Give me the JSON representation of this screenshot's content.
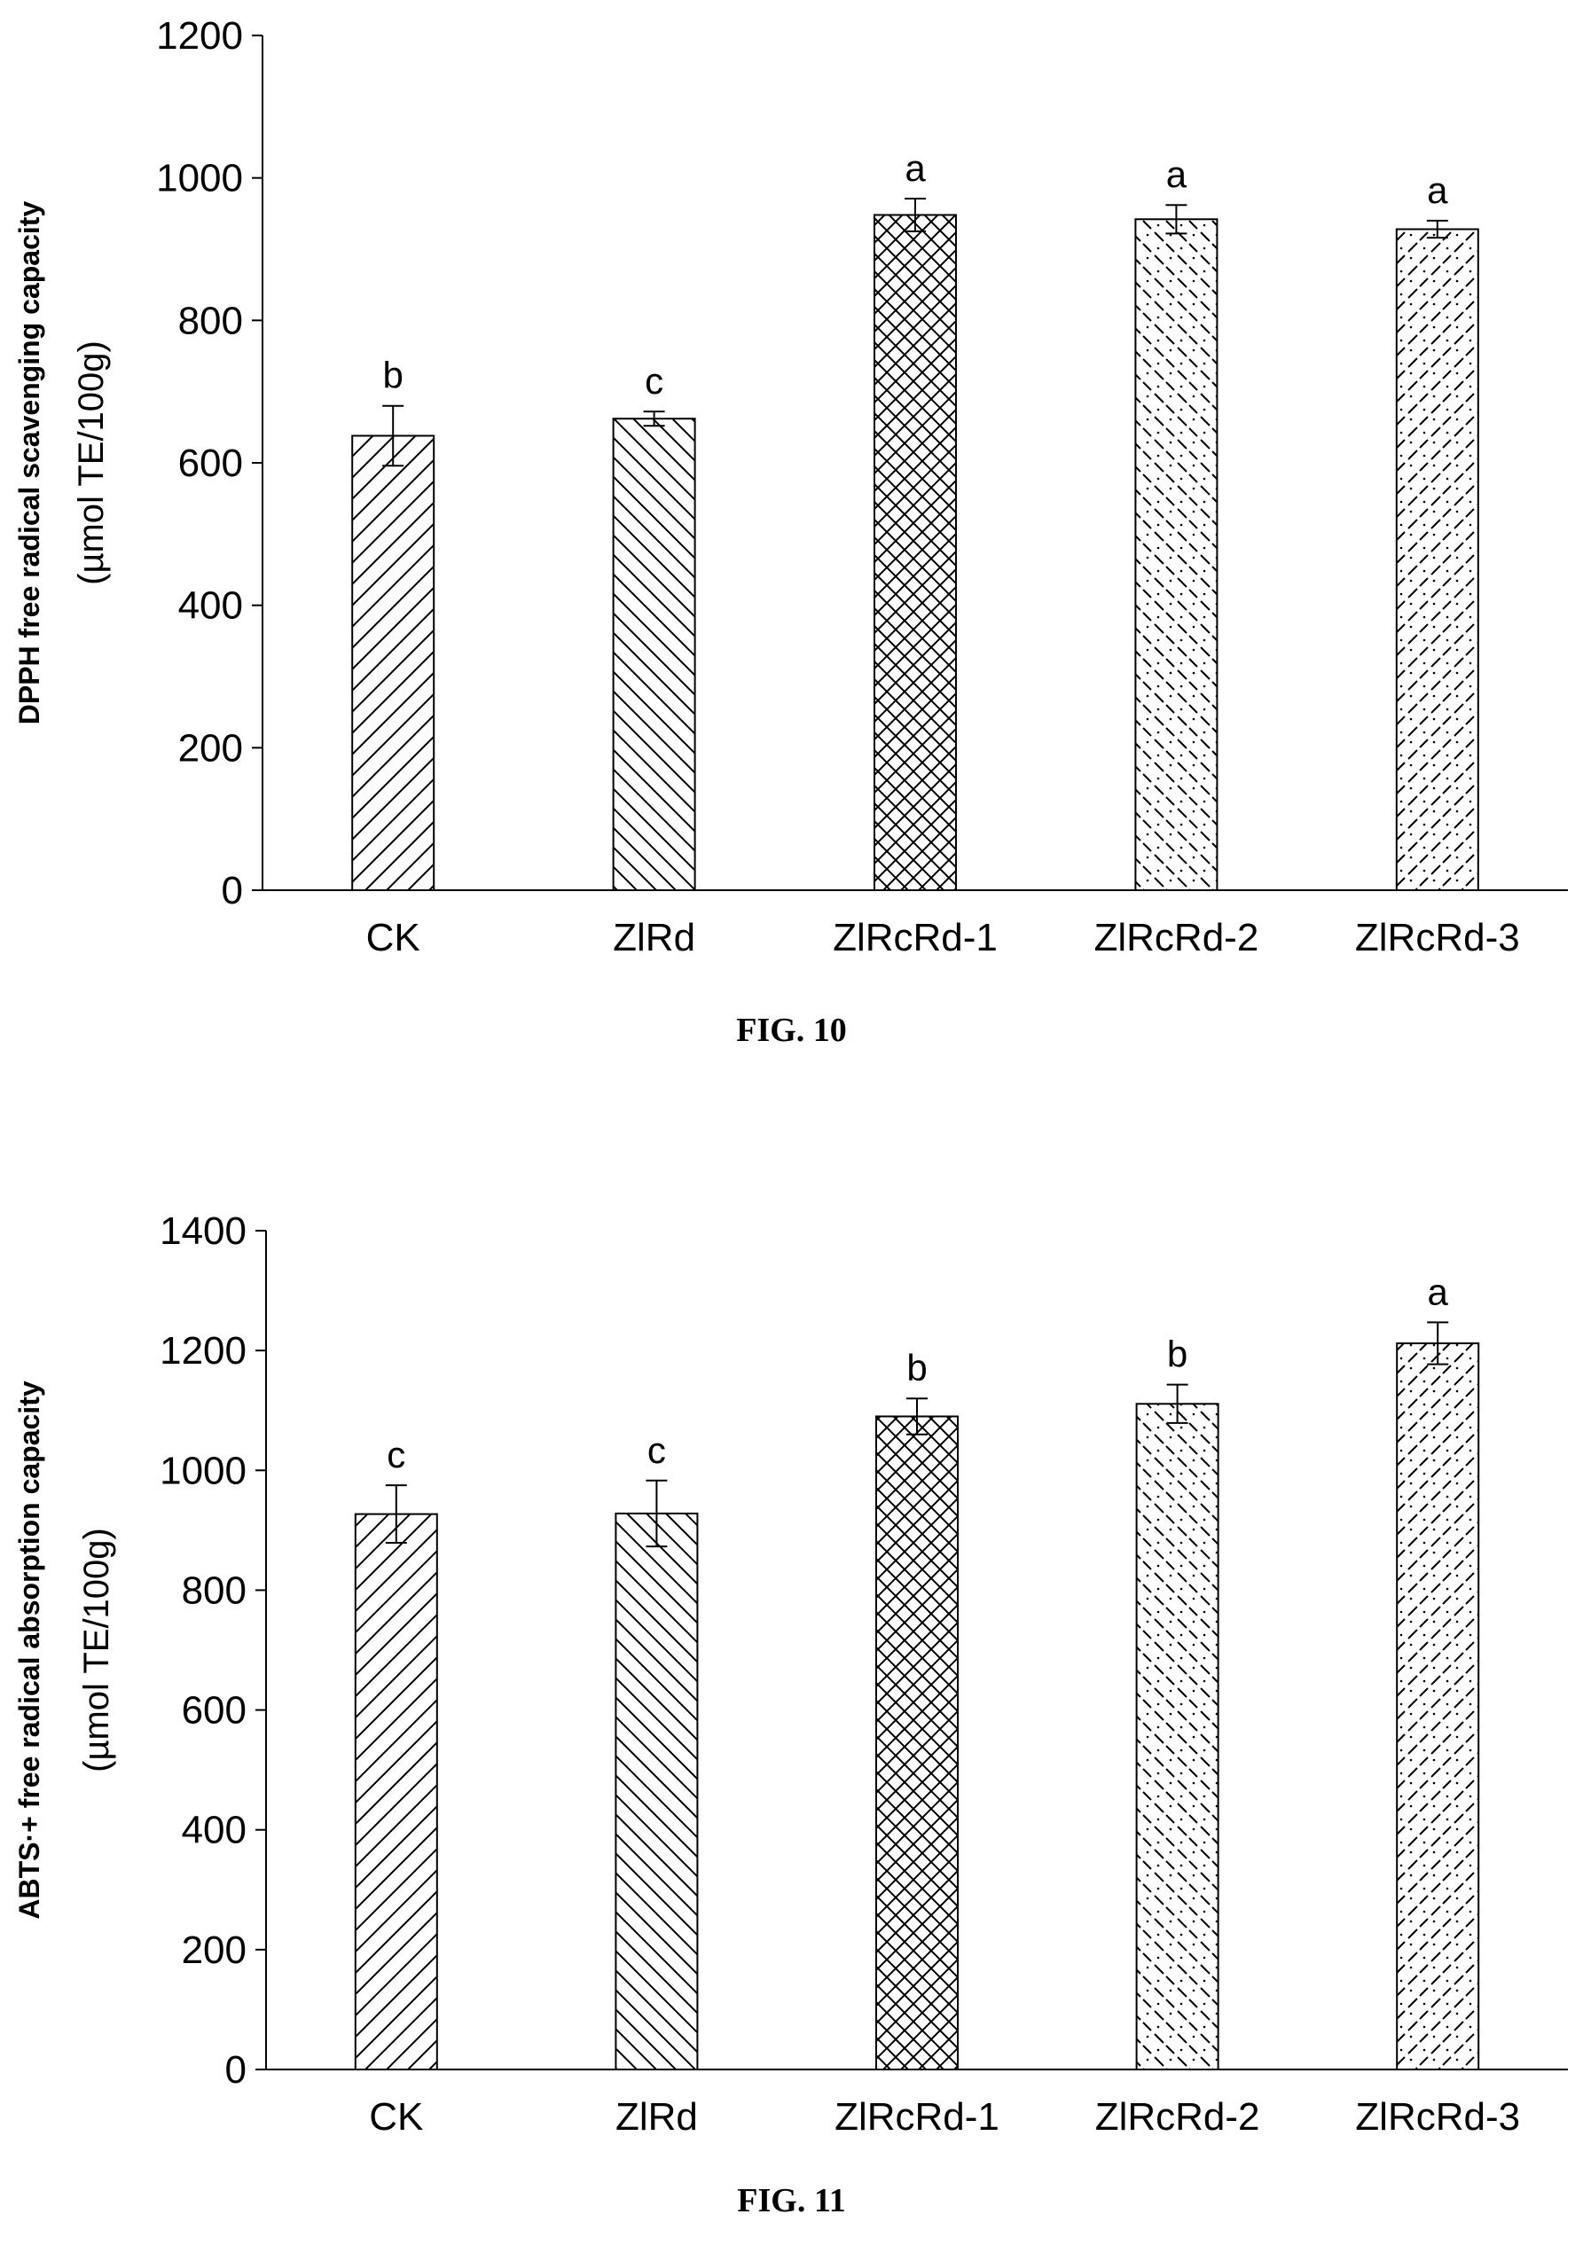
{
  "figures": [
    {
      "caption": "FIG. 10",
      "chart_data": {
        "type": "bar",
        "categories": [
          "CK",
          "ZlRd",
          "ZlRcRd-1",
          "ZlRcRd-2",
          "ZlRcRd-3"
        ],
        "values": [
          638,
          662,
          948,
          942,
          928
        ],
        "errors": [
          42,
          10,
          23,
          20,
          12
        ],
        "significance": [
          "b",
          "c",
          "a",
          "a",
          "a"
        ],
        "patterns": [
          "diag-right",
          "diag-left",
          "crosshatch",
          "dotted-left",
          "dashed-right"
        ],
        "ylabel": [
          "DPPH free radical scavenging capacity",
          "(µmol TE/100g)"
        ],
        "ylim": [
          0,
          1200
        ],
        "yticks": [
          0,
          200,
          400,
          600,
          800,
          1000,
          1200
        ],
        "grid": false,
        "legend": "none"
      }
    },
    {
      "caption": "FIG. 11",
      "chart_data": {
        "type": "bar",
        "categories": [
          "CK",
          "ZlRd",
          "ZlRcRd-1",
          "ZlRcRd-2",
          "ZlRcRd-3"
        ],
        "values": [
          927,
          928,
          1090,
          1111,
          1212
        ],
        "errors": [
          48,
          55,
          30,
          32,
          35
        ],
        "significance": [
          "c",
          "c",
          "b",
          "b",
          "a"
        ],
        "patterns": [
          "diag-right",
          "diag-left",
          "crosshatch",
          "dotted-left",
          "dashed-right"
        ],
        "ylabel": [
          "ABTS·+ free radical absorption capacity",
          "(µmol TE/100g)"
        ],
        "ylim": [
          0,
          1400
        ],
        "yticks": [
          0,
          200,
          400,
          600,
          800,
          1000,
          1200,
          1400
        ],
        "grid": false,
        "legend": "none"
      }
    }
  ]
}
